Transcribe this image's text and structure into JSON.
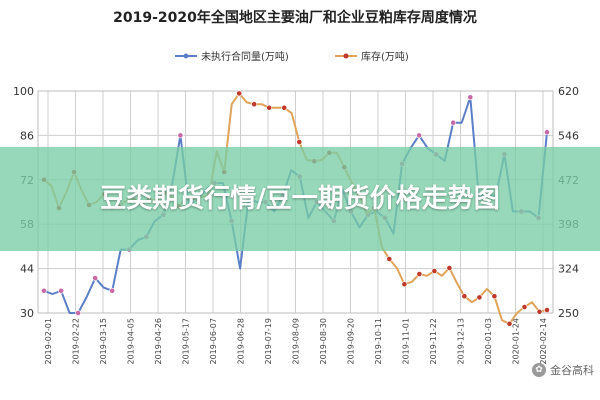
{
  "chart_data": {
    "type": "line",
    "title": "2019-2020年全国地区主要油厂和企业豆粕库存周度情况",
    "legend_position": "top",
    "grid": true,
    "y_left": {
      "min": 30,
      "max": 100,
      "ticks": [
        "100",
        "86",
        "72",
        "58",
        "44",
        "30"
      ]
    },
    "y_right": {
      "min": 250,
      "max": 620,
      "ticks": [
        "620",
        "546",
        "472",
        "398",
        "324",
        "250"
      ]
    },
    "x_ticks": [
      "2019-02-01",
      "2019-02-22",
      "2019-03-15",
      "2019-04-05",
      "2019-04-26",
      "2019-05-17",
      "2019-06-07",
      "2019-06-28",
      "2019-07-19",
      "2019-08-09",
      "2019-08-30",
      "2019-09-20",
      "2019-10-11",
      "2019-11-01",
      "2019-11-22",
      "2019-12-13",
      "2020-01-03",
      "2020-01-24",
      "2020-02-14"
    ],
    "series": [
      {
        "name": "未执行合同量(万吨)",
        "axis": "left",
        "color": "#5b7fc7",
        "values": [
          37,
          36,
          37,
          30,
          30,
          35,
          41,
          38,
          37,
          50,
          50,
          53,
          54,
          59,
          61,
          70,
          86,
          64,
          66,
          69,
          71,
          71,
          59,
          44,
          66,
          65,
          65,
          62,
          67,
          75,
          73,
          60,
          65,
          62,
          59,
          69,
          62,
          57,
          61,
          62,
          60,
          55,
          77,
          82,
          86,
          82,
          80,
          78,
          90,
          90,
          98,
          67,
          67,
          67,
          80,
          62,
          62,
          62,
          60,
          87
        ]
      },
      {
        "name": "库存(万吨)",
        "axis": "right",
        "color": "#e0a45a",
        "values": [
          472,
          462,
          425,
          452,
          485,
          455,
          430,
          435,
          448,
          423,
          428,
          438,
          438,
          432,
          440,
          437,
          450,
          443,
          428,
          442,
          442,
          443,
          447,
          520,
          485,
          598,
          616,
          601,
          598,
          598,
          592,
          592,
          592,
          583,
          535,
          505,
          503,
          505,
          517,
          517,
          493,
          467,
          448,
          415,
          425,
          360,
          340,
          325,
          298,
          302,
          315,
          312,
          320,
          312,
          325,
          300,
          278,
          268,
          276,
          290,
          278,
          238,
          232,
          250,
          260,
          268,
          252,
          255
        ]
      }
    ]
  },
  "overlay": {
    "text": "豆类期货行情/豆一期货价格走势图"
  },
  "watermark": {
    "text": "金谷高科"
  }
}
